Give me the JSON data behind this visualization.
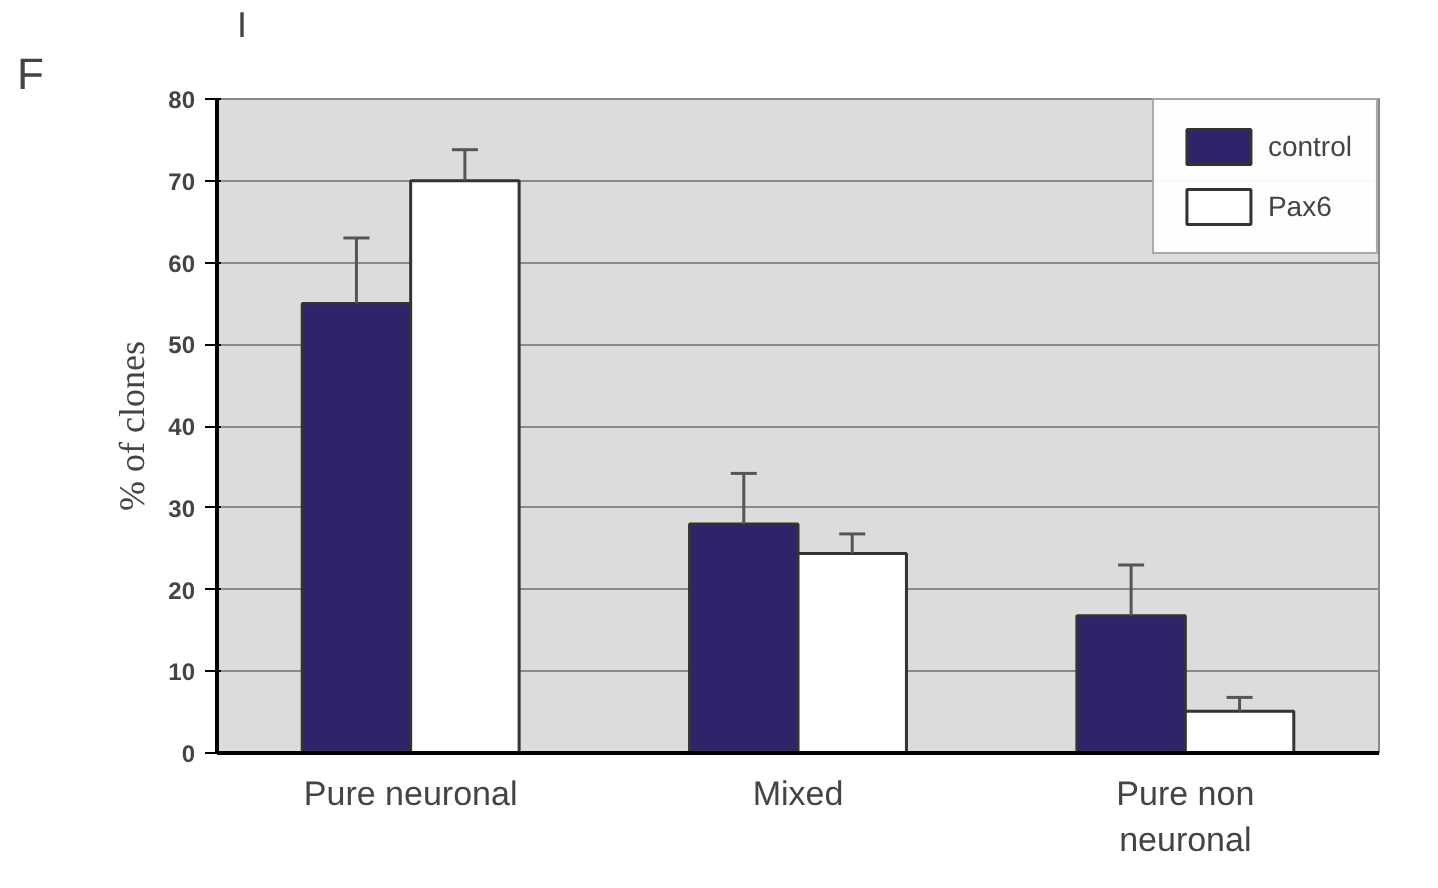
{
  "chart_data": {
    "type": "bar",
    "ylabel": "% of clones",
    "categories": [
      "Pure neuronal",
      "Mixed",
      "Pure non\nneuronal"
    ],
    "series": [
      {
        "name": "control",
        "color": "#302369",
        "values": [
          55,
          28,
          16.8
        ],
        "errors": [
          [
            55,
            63
          ],
          [
            28,
            34.2
          ],
          [
            16.8,
            23
          ]
        ]
      },
      {
        "name": "Pax6",
        "color": "#ffffff",
        "values": [
          70,
          24.4,
          5.1
        ],
        "errors": [
          [
            70,
            73.8
          ],
          [
            24.4,
            26.8
          ],
          [
            5.1,
            6.8
          ]
        ]
      }
    ],
    "ylim": [
      0,
      80
    ],
    "yticks": [
      0,
      10,
      20,
      30,
      40,
      50,
      60,
      70,
      80
    ],
    "grid": "y",
    "legend": "top right",
    "annotations": [
      "F",
      "I"
    ]
  }
}
